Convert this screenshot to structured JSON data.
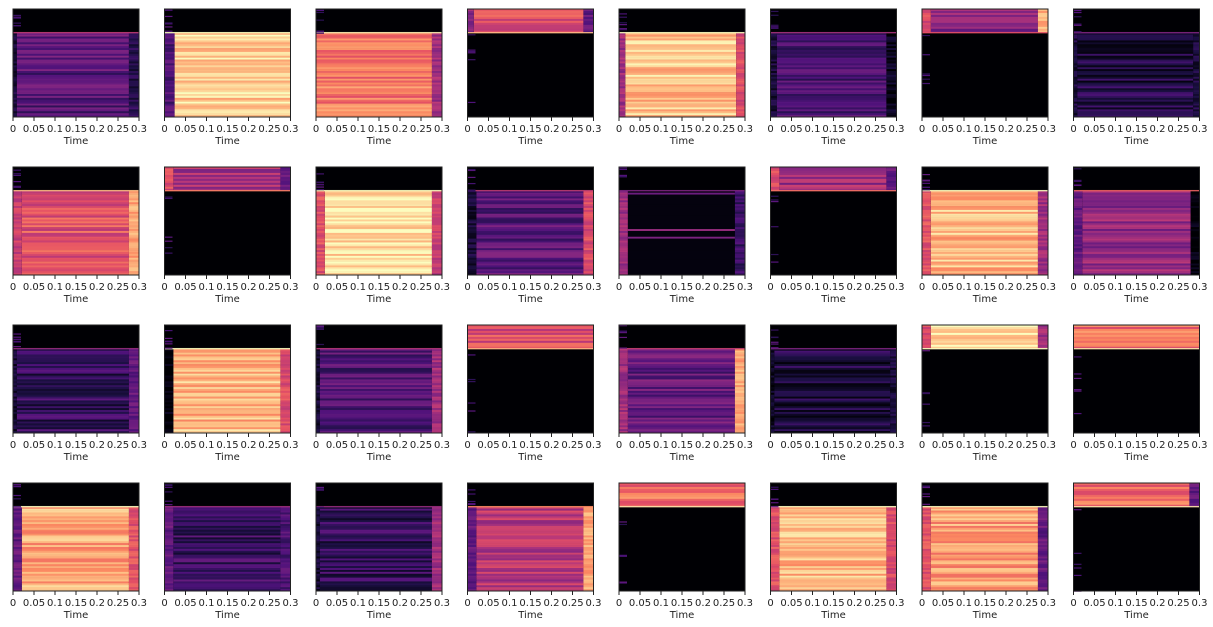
{
  "colors": {
    "background": "#ffffff",
    "frame": "#222222",
    "colormap": "magma",
    "black": "#000004"
  },
  "chart_data": {
    "type": "heatmap",
    "layout": "4 rows x 8 columns of spectrogram panels",
    "xlabel": "Time",
    "xlim": [
      0,
      0.3
    ],
    "x_ticks": [
      0,
      0.05,
      0.1,
      0.15,
      0.2,
      0.25,
      0.3
    ],
    "x_tick_labels": [
      "0",
      "0.05",
      "0.1",
      "0.15",
      "0.2",
      "0.25",
      "0.3"
    ],
    "panels": [
      {
        "region": "bottom",
        "split": 0.78,
        "level": 0.28,
        "start": 0.03,
        "end": 0.92,
        "left_level": 0.1,
        "right_level": 0.15
      },
      {
        "region": "bottom",
        "split": 0.78,
        "level": 0.9,
        "start": 0.08,
        "end": 1.0,
        "left_level": 0.25,
        "right_level": 0.9
      },
      {
        "region": "bottom",
        "split": 0.78,
        "level": 0.72,
        "start": 0.0,
        "end": 0.92,
        "left_level": 0.72,
        "right_level": 0.45
      },
      {
        "region": "top",
        "split": 0.78,
        "level": 0.62,
        "start": 0.05,
        "end": 0.92,
        "left_level": 0.4,
        "right_level": 0.3
      },
      {
        "region": "bottom",
        "split": 0.78,
        "level": 0.88,
        "start": 0.05,
        "end": 0.93,
        "left_level": 0.45,
        "right_level": 0.6
      },
      {
        "region": "bottom",
        "split": 0.78,
        "level": 0.22,
        "start": 0.05,
        "end": 0.92,
        "left_level": 0.1,
        "right_level": 0.05
      },
      {
        "region": "top",
        "split": 0.78,
        "level": 0.38,
        "start": 0.07,
        "end": 0.92,
        "left_level": 0.6,
        "right_level": 0.85
      },
      {
        "region": "bottom",
        "split": 0.78,
        "level": 0.13,
        "start": 0.03,
        "end": 0.95,
        "left_level": 0.12,
        "right_level": 0.12
      },
      {
        "region": "bottom",
        "split": 0.78,
        "level": 0.62,
        "start": 0.07,
        "end": 0.92,
        "left_level": 0.55,
        "right_level": 0.82
      },
      {
        "region": "top",
        "split": 0.78,
        "level": 0.48,
        "start": 0.07,
        "end": 0.92,
        "left_level": 0.6,
        "right_level": 0.3
      },
      {
        "region": "bottom",
        "split": 0.78,
        "level": 0.95,
        "start": 0.07,
        "end": 0.92,
        "left_level": 0.62,
        "right_level": 0.55
      },
      {
        "region": "bottom",
        "split": 0.78,
        "level": 0.28,
        "start": 0.07,
        "end": 0.92,
        "left_level": 0.1,
        "right_level": 0.6
      },
      {
        "region": "sparse",
        "split": 0.78,
        "level": 0.12,
        "start": 0.07,
        "end": 0.92,
        "left_level": 0.45,
        "right_level": 0.2
      },
      {
        "region": "top",
        "split": 0.78,
        "level": 0.45,
        "start": 0.07,
        "end": 0.92,
        "left_level": 0.6,
        "right_level": 0.3
      },
      {
        "region": "bottom",
        "split": 0.78,
        "level": 0.86,
        "start": 0.07,
        "end": 0.92,
        "left_level": 0.62,
        "right_level": 0.45
      },
      {
        "region": "bottom",
        "split": 0.78,
        "level": 0.42,
        "start": 0.07,
        "end": 0.93,
        "left_level": 0.3,
        "right_level": 0.0
      },
      {
        "region": "bottom",
        "split": 0.78,
        "level": 0.18,
        "start": 0.03,
        "end": 0.92,
        "left_level": 0.1,
        "right_level": 0.3
      },
      {
        "region": "bottom",
        "split": 0.78,
        "level": 0.85,
        "start": 0.07,
        "end": 0.92,
        "left_level": 0.0,
        "right_level": 0.6
      },
      {
        "region": "bottom",
        "split": 0.78,
        "level": 0.25,
        "start": 0.03,
        "end": 0.92,
        "left_level": 0.1,
        "right_level": 0.45
      },
      {
        "region": "top",
        "split": 0.78,
        "level": 0.6,
        "start": 0.0,
        "end": 1.0,
        "left_level": 0.6,
        "right_level": 0.6
      },
      {
        "region": "bottom",
        "split": 0.78,
        "level": 0.3,
        "start": 0.07,
        "end": 0.92,
        "left_level": 0.45,
        "right_level": 0.82
      },
      {
        "region": "bottom",
        "split": 0.78,
        "level": 0.12,
        "start": 0.03,
        "end": 0.95,
        "left_level": 0.05,
        "right_level": 0.1
      },
      {
        "region": "top",
        "split": 0.78,
        "level": 0.92,
        "start": 0.07,
        "end": 0.92,
        "left_level": 0.6,
        "right_level": 0.45
      },
      {
        "region": "top",
        "split": 0.78,
        "level": 0.7,
        "start": 0.0,
        "end": 1.0,
        "left_level": 0.7,
        "right_level": 0.7
      },
      {
        "region": "bottom",
        "split": 0.78,
        "level": 0.82,
        "start": 0.07,
        "end": 0.92,
        "left_level": 0.3,
        "right_level": 0.62
      },
      {
        "region": "bottom",
        "split": 0.78,
        "level": 0.2,
        "start": 0.07,
        "end": 0.92,
        "left_level": 0.3,
        "right_level": 0.25
      },
      {
        "region": "bottom",
        "split": 0.78,
        "level": 0.18,
        "start": 0.03,
        "end": 0.92,
        "left_level": 0.1,
        "right_level": 0.45
      },
      {
        "region": "bottom",
        "split": 0.78,
        "level": 0.5,
        "start": 0.07,
        "end": 0.92,
        "left_level": 0.3,
        "right_level": 0.82
      },
      {
        "region": "top",
        "split": 0.78,
        "level": 0.7,
        "start": 0.0,
        "end": 1.0,
        "left_level": 0.45,
        "right_level": 0.7
      },
      {
        "region": "bottom",
        "split": 0.78,
        "level": 0.85,
        "start": 0.07,
        "end": 0.92,
        "left_level": 0.62,
        "right_level": 0.6
      },
      {
        "region": "bottom",
        "split": 0.78,
        "level": 0.8,
        "start": 0.07,
        "end": 0.92,
        "left_level": 0.62,
        "right_level": 0.3
      },
      {
        "region": "top",
        "split": 0.78,
        "level": 0.7,
        "start": 0.0,
        "end": 0.92,
        "left_level": 0.7,
        "right_level": 0.3
      }
    ]
  }
}
